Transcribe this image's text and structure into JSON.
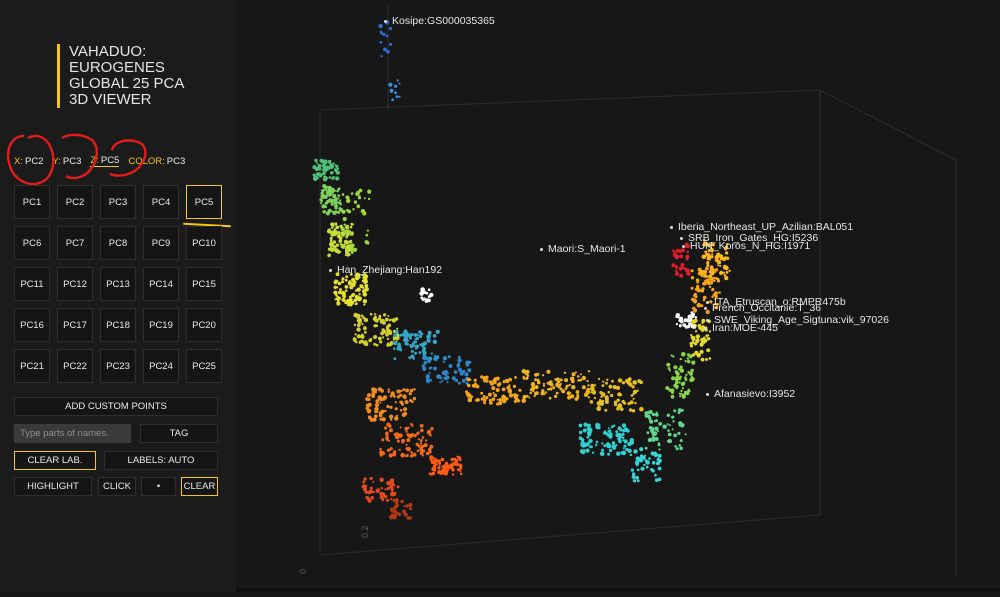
{
  "app": {
    "title": "VAHADUO:\nEUROGENES\nGLOBAL 25 PCA\n3D VIEWER"
  },
  "axes": {
    "x": {
      "key": "X:",
      "value": "PC2"
    },
    "y": {
      "key": "Y:",
      "value": "PC3"
    },
    "z": {
      "key": "Z:",
      "value": "PC5"
    },
    "color": {
      "key": "COLOR:",
      "value": "PC3"
    }
  },
  "pc_buttons": [
    "PC1",
    "PC2",
    "PC3",
    "PC4",
    "PC5",
    "PC6",
    "PC7",
    "PC8",
    "PC9",
    "PC10",
    "PC11",
    "PC12",
    "PC13",
    "PC14",
    "PC15",
    "PC16",
    "PC17",
    "PC18",
    "PC19",
    "PC20",
    "PC21",
    "PC22",
    "PC23",
    "PC24",
    "PC25"
  ],
  "selected_pc": "PC5",
  "controls": {
    "add_custom_points": "ADD CUSTOM POINTS",
    "search_placeholder": "Type parts of names.",
    "tag": "TAG",
    "clear_lab": "CLEAR LAB.",
    "labels_auto": "LABELS: AUTO",
    "highlight": "HIGHLIGHT",
    "click": "CLICK",
    "bullet": "•",
    "clear": "CLEAR"
  },
  "plot_labels": [
    "Kosipe:GS000035365",
    "Iberia_Northeast_UP_Azilian:BAL051",
    "SRB_Iron_Gates_HG:I5236",
    "HUN_Koros_N_HG:I1971",
    "Maori:S_Maori-1",
    "Han_Zhejiang:Han192",
    "ITA_Etruscan_o:RMPR475b",
    "French_Occitanie:T_36",
    "SWE_Viking_Age_Sigtuna:vik_97026",
    "Iran:MOE-445",
    "Afanasievo:I3952"
  ],
  "axis_ticks": [
    "0.2",
    "0"
  ],
  "colors": {
    "accent": "#f5c518",
    "background": "#171717",
    "panel": "#1b1b1b"
  }
}
